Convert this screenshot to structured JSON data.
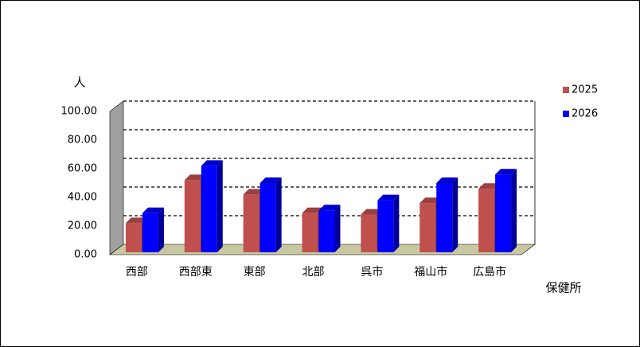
{
  "chart_data": {
    "type": "bar3d",
    "y_label": "人",
    "x_label": "保健所",
    "categories": [
      "西部",
      "西部東",
      "東部",
      "北部",
      "呉市",
      "福山市",
      "広島市"
    ],
    "series": [
      {
        "name": "2025",
        "color": "#c0504d",
        "values": [
          22,
          52,
          42,
          29,
          28,
          36,
          46
        ]
      },
      {
        "name": "2026",
        "color": "#0000ff",
        "values": [
          29,
          62,
          50,
          31,
          38,
          50,
          56
        ]
      }
    ],
    "ylim": [
      0,
      100
    ],
    "yticks": [
      {
        "value": 0,
        "label": "0.00"
      },
      {
        "value": 20,
        "label": "20.00"
      },
      {
        "value": 40,
        "label": "40.00"
      },
      {
        "value": 60,
        "label": "60.00"
      },
      {
        "value": 80,
        "label": "80.00"
      },
      {
        "value": 100,
        "label": "100.00"
      }
    ],
    "grid": true,
    "legend": "right"
  }
}
